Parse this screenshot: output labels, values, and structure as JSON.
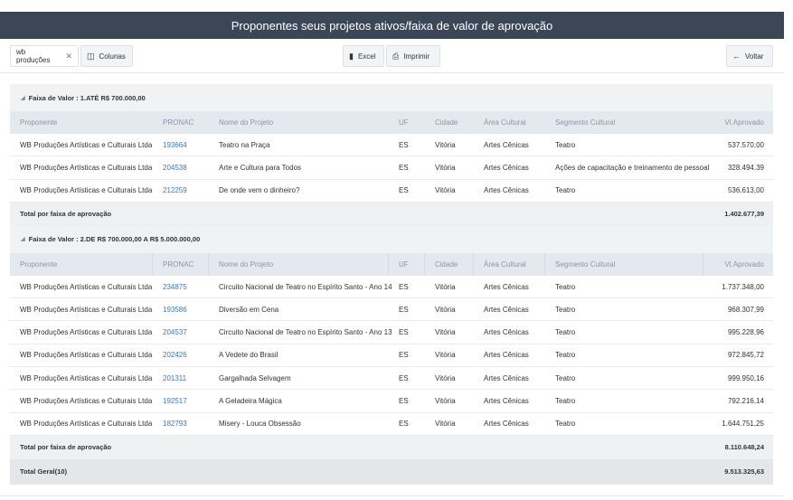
{
  "title": "Proponentes seus projetos ativos/faixa de valor de aprovação",
  "toolbar": {
    "filter_chip": "wb produções",
    "columns_label": "Colunas",
    "excel_label": "Excel",
    "print_label": "Imprimir",
    "back_label": "Voltar"
  },
  "columns": [
    "Proponente",
    "PRONAC",
    "Nome do Projeto",
    "UF",
    "Cidade",
    "Área Cultural",
    "Segmento Cultural",
    "Vl.Aprovado"
  ],
  "groups": [
    {
      "label": "Faixa de Valor : 1.ATÉ R$ 700.000,00",
      "rows": [
        {
          "proponente": "WB Produções Artísticas e Culturais Ltda",
          "pronac": "193664",
          "nome": "Teatro na Praça",
          "uf": "ES",
          "cidade": "Vitória",
          "area": "Artes Cênicas",
          "segmento": "Teatro",
          "valor": "537.570,00"
        },
        {
          "proponente": "WB Produções Artísticas e Culturais Ltda",
          "pronac": "204538",
          "nome": "Arte e Cultura para Todos",
          "uf": "ES",
          "cidade": "Vitória",
          "area": "Artes Cênicas",
          "segmento": "Ações de capacitação e treinamento de pessoal",
          "valor": "328.494,39"
        },
        {
          "proponente": "WB Produções Artísticas e Culturais Ltda",
          "pronac": "212259",
          "nome": "De onde vem o dinheiro?",
          "uf": "ES",
          "cidade": "Vitória",
          "area": "Artes Cênicas",
          "segmento": "Teatro",
          "valor": "536.613,00"
        }
      ],
      "total_label": "Total por faixa de aprovação",
      "total_value": "1.402.677,39"
    },
    {
      "label": "Faixa de Valor : 2.DE R$ 700.000,00 A R$ 5.000.000,00",
      "rows": [
        {
          "proponente": "WB Produções Artísticas e Culturais Ltda",
          "pronac": "234875",
          "nome": "Circuito Nacional de Teatro no Espírito Santo - Ano 14",
          "uf": "ES",
          "cidade": "Vitória",
          "area": "Artes Cênicas",
          "segmento": "Teatro",
          "valor": "1.737.348,00"
        },
        {
          "proponente": "WB Produções Artísticas e Culturais Ltda",
          "pronac": "193586",
          "nome": "Diversão em Cena",
          "uf": "ES",
          "cidade": "Vitória",
          "area": "Artes Cênicas",
          "segmento": "Teatro",
          "valor": "968.307,99"
        },
        {
          "proponente": "WB Produções Artísticas e Culturais Ltda",
          "pronac": "204537",
          "nome": "Circuito Nacional de Teatro no Espírito Santo - Ano 13",
          "uf": "ES",
          "cidade": "Vitória",
          "area": "Artes Cênicas",
          "segmento": "Teatro",
          "valor": "995.228,96"
        },
        {
          "proponente": "WB Produções Artísticas e Culturais Ltda",
          "pronac": "202426",
          "nome": "A Vedete do Brasil",
          "uf": "ES",
          "cidade": "Vitória",
          "area": "Artes Cênicas",
          "segmento": "Teatro",
          "valor": "972.845,72"
        },
        {
          "proponente": "WB Produções Artísticas e Culturais Ltda",
          "pronac": "201311",
          "nome": "Gargalhada Selvagem",
          "uf": "ES",
          "cidade": "Vitória",
          "area": "Artes Cênicas",
          "segmento": "Teatro",
          "valor": "999.950,16"
        },
        {
          "proponente": "WB Produções Artísticas e Culturais Ltda",
          "pronac": "192517",
          "nome": "A Geladeira Mágica",
          "uf": "ES",
          "cidade": "Vitória",
          "area": "Artes Cênicas",
          "segmento": "Teatro",
          "valor": "792.216,14"
        },
        {
          "proponente": "WB Produções Artísticas e Culturais Ltda",
          "pronac": "182793",
          "nome": "Misery - Louca Obsessão",
          "uf": "ES",
          "cidade": "Vitória",
          "area": "Artes Cênicas",
          "segmento": "Teatro",
          "valor": "1.644.751,25"
        }
      ],
      "total_label": "Total por faixa de aprovação",
      "total_value": "8.110.648,24"
    }
  ],
  "grand_total": {
    "label": "Total Geral(10)",
    "value": "9.513.325,63"
  },
  "colors": {
    "header_bar": "#3b4656",
    "link": "#3b77c0",
    "column_header_bg": "#e4e8ef"
  }
}
